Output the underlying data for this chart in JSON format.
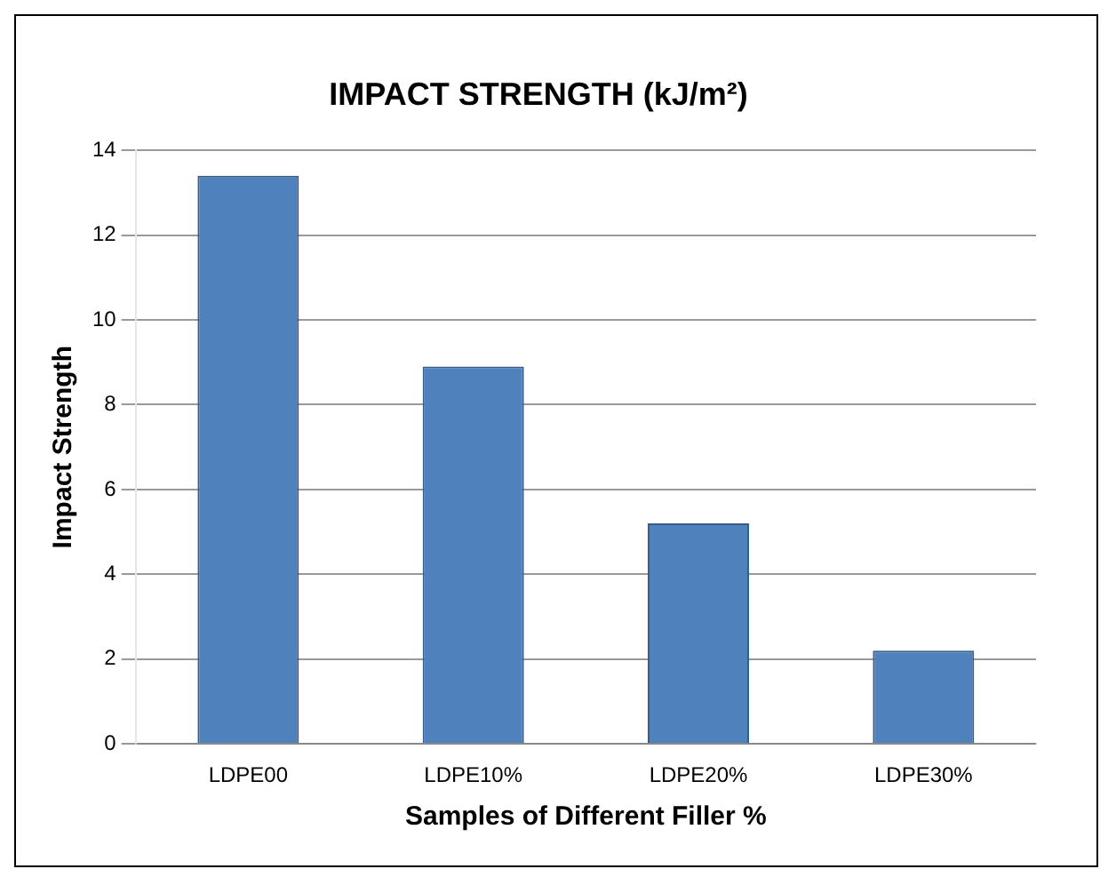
{
  "chart_data": {
    "type": "bar",
    "title": "IMPACT STRENGTH (kJ/m²)",
    "xlabel": "Samples of Different Filler %",
    "ylabel": "Impact Strength",
    "categories": [
      "LDPE00",
      "LDPE10%",
      "LDPE20%",
      "LDPE30%"
    ],
    "values": [
      13.4,
      8.9,
      5.2,
      2.2
    ],
    "color": "#4f81bd",
    "ylim": [
      0,
      14
    ],
    "yticks": [
      0,
      2,
      4,
      6,
      8,
      10,
      12,
      14
    ],
    "grid": "y",
    "legend": false
  }
}
